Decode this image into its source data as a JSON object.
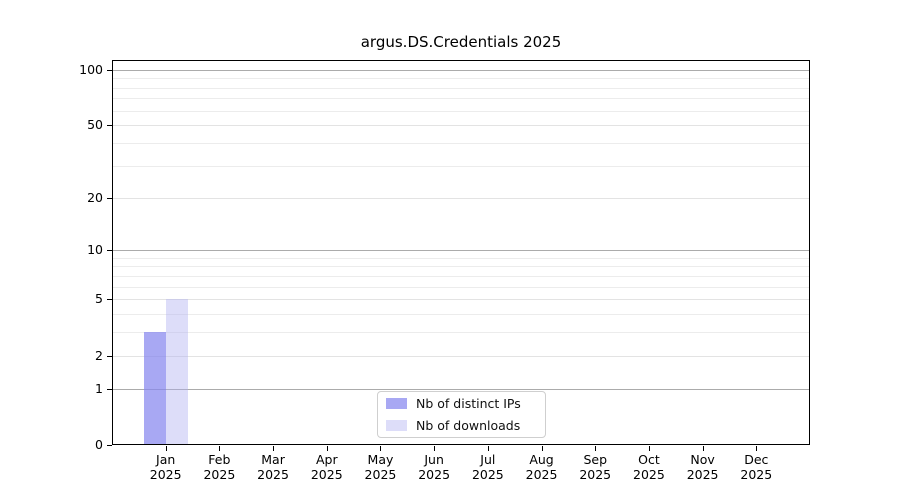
{
  "chart_data": {
    "type": "bar",
    "title": "argus.DS.Credentials 2025",
    "categories": [
      "Jan 2025",
      "Feb 2025",
      "Mar 2025",
      "Apr 2025",
      "May 2025",
      "Jun 2025",
      "Jul 2025",
      "Aug 2025",
      "Sep 2025",
      "Oct 2025",
      "Nov 2025",
      "Dec 2025"
    ],
    "series": [
      {
        "name": "Nb of distinct IPs",
        "values": [
          3,
          0,
          0,
          0,
          0,
          0,
          0,
          0,
          0,
          0,
          0,
          0
        ],
        "color": "#8787ee",
        "alpha": 0.72
      },
      {
        "name": "Nb of downloads",
        "values": [
          5,
          0,
          0,
          0,
          0,
          0,
          0,
          0,
          0,
          0,
          0,
          0
        ],
        "color": "#adadf0",
        "alpha": 0.42
      }
    ],
    "yscale": "log1p",
    "ylim": [
      0,
      113
    ],
    "y_ticks_labeled": [
      100,
      50,
      20,
      10,
      5,
      2,
      1,
      0
    ],
    "y_ticks_decade": [
      100,
      10,
      1
    ],
    "y_ticks_minor": [
      90,
      80,
      70,
      60,
      40,
      30,
      9,
      8,
      7,
      6,
      4,
      3
    ],
    "grid": true,
    "legend_position": "lower center inside",
    "colors": {
      "grid_decade": "#ababab",
      "grid_light": "#e3e3e3",
      "grid_minor": "#ececec",
      "axis": "#000000"
    }
  }
}
